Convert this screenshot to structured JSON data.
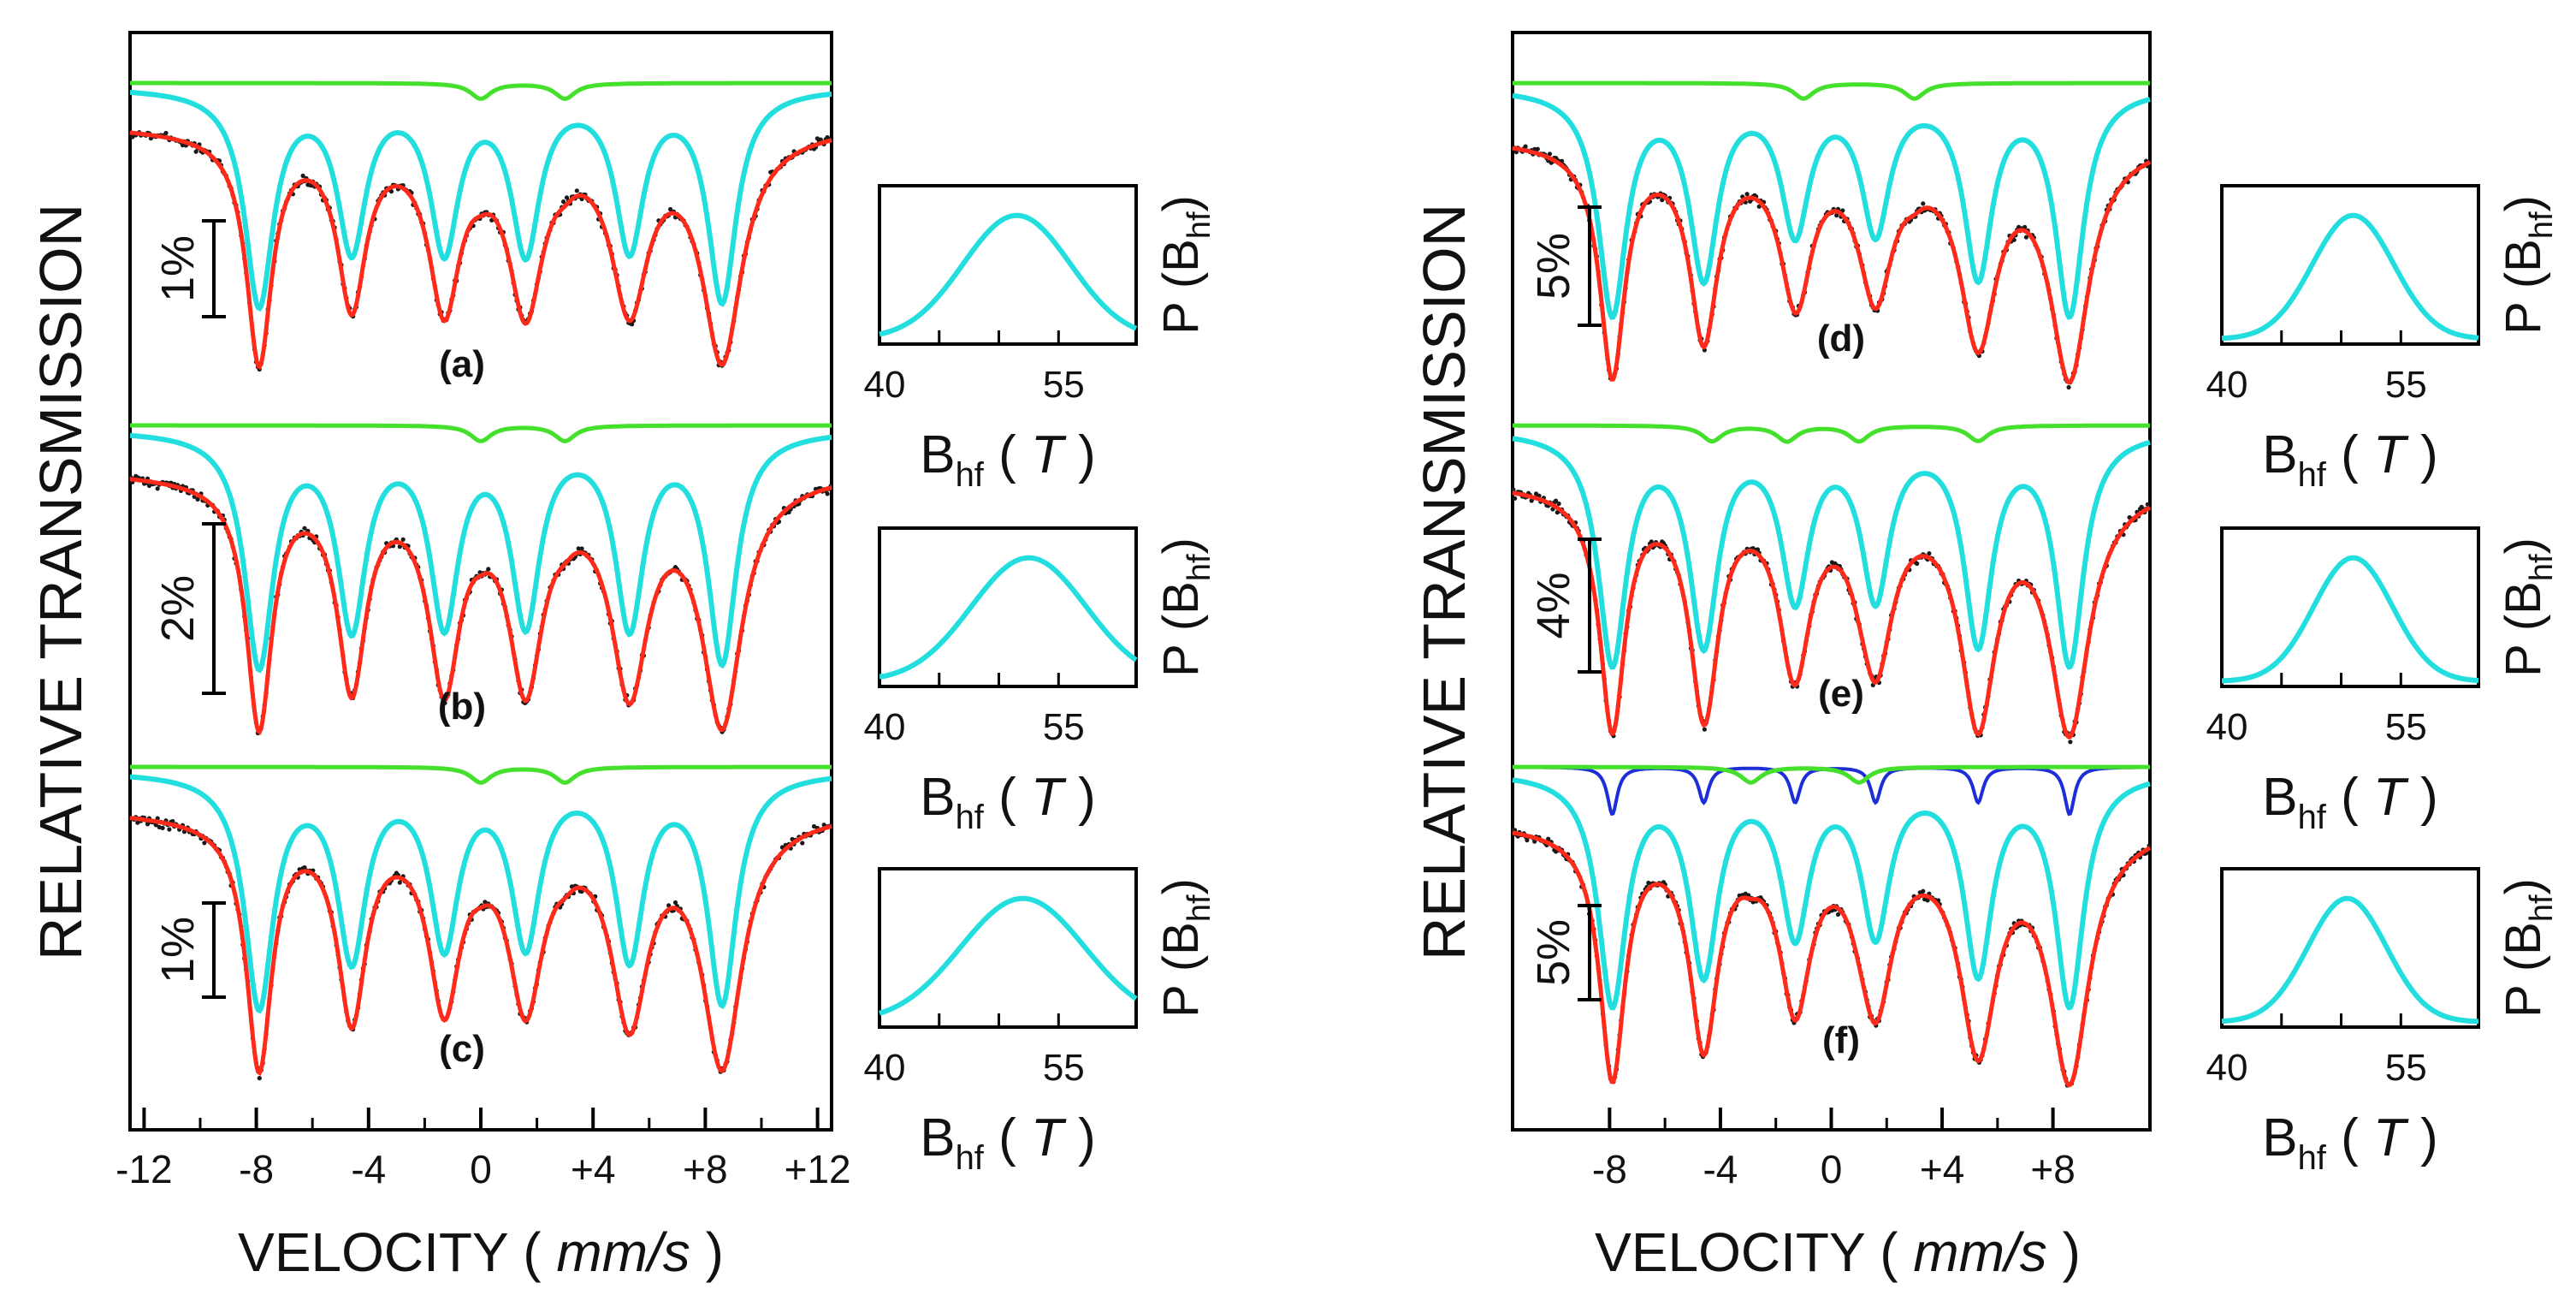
{
  "colors": {
    "data_points": "#1a1a1a",
    "fit_total": "#ff2a1a",
    "sextet_distribution": "#22dede",
    "doublet_minor": "#44e02c",
    "sextet_sharp": "#1c2ed8",
    "axes": "#000000"
  },
  "left_panel": {
    "ylabel": "RELATIVE TRANSMISSION",
    "xlabel_main": "VELOCITY ( ",
    "xlabel_unit": "mm/s",
    "xlabel_close": " )",
    "xticks": [
      "-12",
      "-8",
      "-4",
      "0",
      "+4",
      "+8",
      "+12"
    ]
  },
  "right_panel": {
    "ylabel": "RELATIVE TRANSMISSION",
    "xlabel_main": "VELOCITY ( ",
    "xlabel_unit": "mm/s",
    "xlabel_close": " )",
    "xticks": [
      "-8",
      "-4",
      "0",
      "+4",
      "+8"
    ]
  },
  "inset_labels": {
    "ylabel_main": "P (B",
    "ylabel_sub": "hf",
    "ylabel_close": ")",
    "xlabel_main": "B",
    "xlabel_sub": "hf",
    "xlabel_paren_open": " ( ",
    "xlabel_unit": "T",
    "xlabel_paren_close": " )",
    "xticks": [
      "40",
      "55"
    ]
  },
  "chart_data": [
    {
      "id": "a",
      "type": "line",
      "panel": "left",
      "label": "(a)",
      "scale_bar": "1%",
      "xlim": [
        -12.5,
        12.5
      ],
      "xlabel": "VELOCITY ( mm/s )",
      "ylabel": "RELATIVE TRANSMISSION",
      "sextet_line_positions_mm_s": [
        -7.9,
        -4.6,
        -1.3,
        1.6,
        5.3,
        8.6
      ],
      "sextet_relative_depths": [
        1.0,
        0.73,
        0.73,
        0.74,
        0.73,
        0.98
      ],
      "doublet_line_positions_mm_s": [
        0.0,
        3.0
      ],
      "distribution": {
        "xlabel": "B_hf ( T )",
        "ylabel": "P (B_hf)",
        "xticks": [
          40,
          55
        ],
        "xlim": [
          40,
          61.5
        ],
        "peak_T": 51.5,
        "width_T": 4.5,
        "tail_T": 40.5
      }
    },
    {
      "id": "b",
      "type": "line",
      "panel": "left",
      "label": "(b)",
      "scale_bar": "2%",
      "xlim": [
        -12.5,
        12.5
      ],
      "xlabel": "VELOCITY ( mm/s )",
      "ylabel": "RELATIVE TRANSMISSION",
      "sextet_line_positions_mm_s": [
        -7.9,
        -4.6,
        -1.3,
        1.6,
        5.3,
        8.6
      ],
      "sextet_relative_depths": [
        1.0,
        0.82,
        0.8,
        0.8,
        0.82,
        0.98
      ],
      "doublet_line_positions_mm_s": [
        0.0,
        3.0
      ],
      "distribution": {
        "xlabel": "B_hf ( T )",
        "ylabel": "P (B_hf)",
        "xticks": [
          40,
          55
        ],
        "xlim": [
          40,
          61.5
        ],
        "peak_T": 52.5,
        "width_T": 4.8,
        "tail_T": 40.5
      }
    },
    {
      "id": "c",
      "type": "line",
      "panel": "left",
      "label": "(c)",
      "scale_bar": "1%",
      "xlim": [
        -12.5,
        12.5
      ],
      "xlabel": "VELOCITY ( mm/s )",
      "ylabel": "RELATIVE TRANSMISSION",
      "sextet_line_positions_mm_s": [
        -7.9,
        -4.6,
        -1.3,
        1.6,
        5.3,
        8.6
      ],
      "sextet_relative_depths": [
        1.0,
        0.78,
        0.72,
        0.72,
        0.78,
        0.98
      ],
      "doublet_line_positions_mm_s": [
        0.0,
        3.0
      ],
      "distribution": {
        "xlabel": "B_hf ( T )",
        "ylabel": "P (B_hf)",
        "xticks": [
          40,
          55
        ],
        "xlim": [
          40,
          61.5
        ],
        "peak_T": 52.0,
        "width_T": 5.2,
        "tail_T": 41.0
      }
    },
    {
      "id": "d",
      "type": "line",
      "panel": "right",
      "label": "(d)",
      "scale_bar": "5%",
      "xlim": [
        -11.5,
        11.5
      ],
      "xlabel": "VELOCITY ( mm/s )",
      "ylabel": "RELATIVE TRANSMISSION",
      "sextet_line_positions_mm_s": [
        -7.9,
        -4.6,
        -1.3,
        1.6,
        5.3,
        8.6
      ],
      "sextet_relative_depths": [
        1.0,
        0.82,
        0.62,
        0.62,
        0.82,
        1.0
      ],
      "doublet_line_positions_mm_s": [
        -1.0,
        3.0
      ],
      "distribution": {
        "xlabel": "B_hf ( T )",
        "ylabel": "P (B_hf)",
        "xticks": [
          40,
          55
        ],
        "xlim": [
          40,
          61.5
        ],
        "peak_T": 51.0,
        "width_T": 3.4,
        "tail_T": 45.0
      }
    },
    {
      "id": "e",
      "type": "line",
      "panel": "right",
      "label": "(e)",
      "scale_bar": "4%",
      "xlim": [
        -11.5,
        11.5
      ],
      "xlabel": "VELOCITY ( mm/s )",
      "ylabel": "RELATIVE TRANSMISSION",
      "sextet_line_positions_mm_s": [
        -7.9,
        -4.6,
        -1.3,
        1.6,
        5.3,
        8.6
      ],
      "sextet_relative_depths": [
        1.0,
        0.9,
        0.7,
        0.7,
        0.9,
        1.0
      ],
      "doublet_line_positions_mm_s": [
        -4.3,
        -1.6,
        1.0,
        5.3
      ],
      "distribution": {
        "xlabel": "B_hf ( T )",
        "ylabel": "P (B_hf)",
        "xticks": [
          40,
          55
        ],
        "xlim": [
          40,
          61.5
        ],
        "peak_T": 51.0,
        "width_T": 3.3,
        "tail_T": 44.5
      }
    },
    {
      "id": "f",
      "type": "line",
      "panel": "right",
      "label": "(f)",
      "scale_bar": "5%",
      "xlim": [
        -11.5,
        11.5
      ],
      "xlabel": "VELOCITY ( mm/s )",
      "ylabel": "RELATIVE TRANSMISSION",
      "sextet_line_positions_mm_s": [
        -7.9,
        -4.6,
        -1.3,
        1.6,
        5.3,
        8.6
      ],
      "sextet_relative_depths": [
        1.0,
        0.85,
        0.68,
        0.68,
        0.85,
        1.0
      ],
      "sharp_sextet_line_positions_mm_s": [
        -7.9,
        -4.6,
        -1.3,
        1.6,
        5.3,
        8.6
      ],
      "doublet_line_positions_mm_s": [
        -2.9,
        1.0
      ],
      "distribution": {
        "xlabel": "B_hf ( T )",
        "ylabel": "P (B_hf)",
        "xticks": [
          40,
          55
        ],
        "xlim": [
          40,
          61.5
        ],
        "peak_T": 50.5,
        "width_T": 3.3,
        "tail_T": 44.0
      }
    }
  ]
}
